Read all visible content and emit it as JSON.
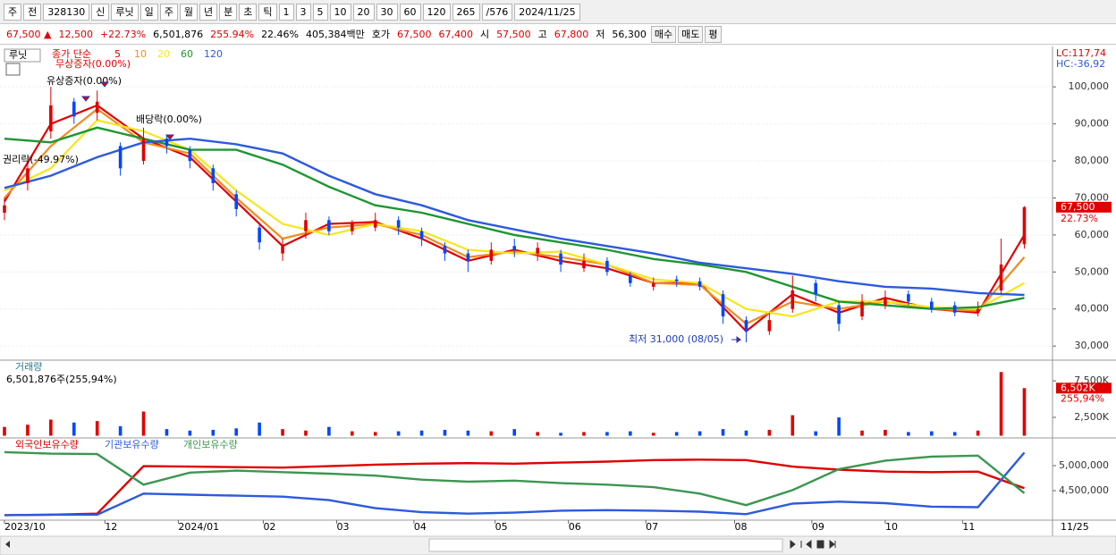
{
  "toolbar": [
    "주",
    "전",
    "328130",
    "신",
    "루닛",
    "일",
    "주",
    "월",
    "년",
    "분",
    "초",
    "틱",
    "1",
    "3",
    "5",
    "10",
    "20",
    "30",
    "60",
    "120",
    "265",
    "/576",
    "2024/11/25"
  ],
  "info_bar": [
    "67,500 ▲",
    "12,500",
    "+22.73%",
    "6,501,876",
    "255.94%",
    "22.46%",
    "405,384백만",
    "호가",
    "67,500",
    "67,400",
    "시",
    "57,500",
    "고",
    "67,800",
    "저",
    "56,300",
    "매수",
    "매도",
    "평"
  ],
  "chart_data": [
    {
      "type": "candlestick",
      "title": "루닛",
      "subtitle": "종가 단순",
      "lc_label": "LC:117,74",
      "hc_label": "HC:-36,92",
      "annotations": [
        "무상증자(0.00%)",
        "유상증자(0.00%)",
        "배당락(0.00%)",
        "권리락(-49.97%)",
        "최저 31,000 (08/05)"
      ],
      "x": [
        0,
        6,
        12,
        18,
        24,
        30,
        36,
        42,
        48,
        54,
        60,
        66,
        72,
        78,
        84,
        90,
        96,
        102,
        108,
        114,
        120,
        126,
        132,
        138,
        144,
        150,
        156,
        162,
        168,
        174,
        180,
        186,
        192,
        198,
        204,
        210,
        216,
        222,
        228,
        234,
        240,
        246,
        252,
        258,
        264
      ],
      "open": [
        66000,
        74000,
        88000,
        96000,
        93000,
        84000,
        80000,
        86000,
        83000,
        78000,
        71000,
        62000,
        55000,
        61000,
        64000,
        61000,
        62000,
        64000,
        61000,
        57000,
        55000,
        53000,
        57000,
        55000,
        55000,
        51000,
        53000,
        49000,
        46000,
        48000,
        47500,
        44000,
        37000,
        34000,
        40000,
        47000,
        41000,
        38000,
        41000,
        44000,
        42000,
        41000,
        39000,
        45000,
        57500
      ],
      "high": [
        70000,
        80000,
        100000,
        97000,
        99000,
        85000,
        89000,
        87000,
        84000,
        79000,
        72000,
        63000,
        59000,
        66000,
        65000,
        64000,
        66000,
        65000,
        62000,
        58000,
        56000,
        58000,
        59000,
        58000,
        56000,
        55000,
        54000,
        50000,
        48500,
        49000,
        48500,
        45000,
        38000,
        39000,
        49000,
        48000,
        42000,
        44000,
        45000,
        45000,
        43000,
        42000,
        42000,
        59000,
        67800
      ],
      "low": [
        64000,
        72000,
        86000,
        90000,
        91000,
        76000,
        79000,
        82000,
        78000,
        72000,
        65000,
        56000,
        53000,
        59000,
        60000,
        60000,
        61000,
        60000,
        57000,
        53000,
        50000,
        52000,
        54000,
        53000,
        50000,
        50000,
        49000,
        46000,
        45000,
        46000,
        45000,
        36000,
        31000,
        33000,
        39000,
        42000,
        34000,
        37000,
        40000,
        41000,
        39000,
        38000,
        38000,
        44000,
        56300
      ],
      "close": [
        68000,
        78000,
        95000,
        92000,
        96000,
        78000,
        86000,
        84000,
        80000,
        74000,
        67000,
        58000,
        57000,
        64000,
        61000,
        63000,
        64000,
        62000,
        59000,
        55000,
        53000,
        56000,
        56000,
        56500,
        52000,
        53000,
        50000,
        47000,
        47000,
        47500,
        46000,
        38000,
        34000,
        37000,
        45000,
        44000,
        36000,
        42000,
        43000,
        42000,
        40000,
        39000,
        40000,
        52000,
        67500
      ],
      "up_color": "#e00000",
      "down_color": "#0046ff",
      "series": [
        {
          "name": "5",
          "color": "#e00000",
          "x": [
            0,
            12,
            24,
            36,
            48,
            60,
            72,
            84,
            96,
            108,
            120,
            132,
            144,
            156,
            168,
            180,
            192,
            204,
            216,
            228,
            240,
            252,
            264
          ],
          "values": [
            69000,
            90000,
            95000,
            86000,
            81000,
            69000,
            57000,
            63000,
            63500,
            59000,
            53000,
            56000,
            53000,
            51000,
            47000,
            47000,
            34000,
            44000,
            39000,
            43000,
            40000,
            39000,
            60000
          ]
        },
        {
          "name": "10",
          "color": "#f08c1e",
          "x": [
            0,
            12,
            24,
            36,
            48,
            60,
            72,
            84,
            96,
            108,
            120,
            132,
            144,
            156,
            168,
            180,
            192,
            204,
            216,
            228,
            240,
            252,
            264
          ],
          "values": [
            70000,
            84000,
            94000,
            85000,
            82000,
            70000,
            59000,
            62000,
            63000,
            60000,
            54000,
            55500,
            54000,
            52000,
            47000,
            46500,
            36000,
            42000,
            40000,
            42000,
            40000,
            39500,
            54000
          ]
        },
        {
          "name": "20",
          "color": "#f5e61e",
          "x": [
            0,
            12,
            24,
            36,
            48,
            60,
            72,
            84,
            96,
            108,
            120,
            132,
            144,
            156,
            168,
            180,
            192,
            204,
            216,
            228,
            240,
            252,
            264
          ],
          "values": [
            72000,
            78000,
            91000,
            88000,
            83000,
            72000,
            63000,
            60000,
            63000,
            61000,
            56000,
            55000,
            55500,
            52000,
            48000,
            47000,
            40000,
            38000,
            42000,
            42000,
            40500,
            40000,
            47000
          ]
        },
        {
          "name": "60",
          "color": "#1e9632",
          "x": [
            0,
            12,
            24,
            36,
            48,
            60,
            72,
            84,
            96,
            108,
            120,
            132,
            144,
            156,
            168,
            180,
            192,
            204,
            216,
            228,
            240,
            252,
            264
          ],
          "values": [
            86000,
            85000,
            89000,
            86000,
            83000,
            83000,
            79000,
            73000,
            68000,
            66000,
            63000,
            60000,
            58000,
            56000,
            53500,
            52000,
            50000,
            46000,
            42000,
            41000,
            40000,
            40500,
            43000
          ]
        },
        {
          "name": "120",
          "color": "#2d5adc",
          "x": [
            0,
            12,
            24,
            36,
            48,
            60,
            72,
            84,
            96,
            108,
            120,
            132,
            144,
            156,
            168,
            180,
            192,
            204,
            216,
            228,
            240,
            252,
            264
          ],
          "values": [
            72700,
            76000,
            81000,
            85000,
            86000,
            84500,
            82000,
            76000,
            71000,
            68000,
            64000,
            61500,
            59000,
            57000,
            55000,
            52500,
            51000,
            49500,
            47500,
            46000,
            45500,
            44300,
            43800
          ]
        }
      ],
      "current_price": {
        "value": 67500,
        "label": "67,500"
      },
      "change_label": "22.73%",
      "xlim": [
        0,
        265
      ],
      "ylim": [
        26900,
        109700
      ],
      "yticks": [
        {
          "value": 30000,
          "label": "30,000"
        },
        {
          "value": 40000,
          "label": "40,000"
        },
        {
          "value": 50000,
          "label": "50,000"
        },
        {
          "value": 60000,
          "label": "60,000"
        },
        {
          "value": 70000,
          "label": "70,000"
        },
        {
          "value": 80000,
          "label": "80,000"
        },
        {
          "value": 90000,
          "label": "90,000"
        },
        {
          "value": 100000,
          "label": "100,000"
        }
      ],
      "grid": true
    },
    {
      "type": "bar",
      "title": "거래량",
      "subtitle": "6,501,876주(255,94%)",
      "x": [
        0,
        6,
        12,
        18,
        24,
        30,
        36,
        42,
        48,
        54,
        60,
        66,
        72,
        78,
        84,
        90,
        96,
        102,
        108,
        114,
        120,
        126,
        132,
        138,
        144,
        150,
        156,
        162,
        168,
        174,
        180,
        186,
        192,
        198,
        204,
        210,
        216,
        222,
        228,
        234,
        240,
        246,
        252,
        258,
        264
      ],
      "values": [
        1200,
        1500,
        2200,
        1800,
        2000,
        1300,
        3300,
        900,
        700,
        800,
        1000,
        1800,
        900,
        700,
        1200,
        600,
        500,
        600,
        700,
        800,
        700,
        600,
        900,
        500,
        400,
        500,
        500,
        600,
        400,
        500,
        600,
        900,
        700,
        800,
        2800,
        600,
        2500,
        700,
        800,
        500,
        600,
        500,
        700,
        8700,
        6502
      ],
      "last_volume": {
        "value": 6502,
        "label": "6,502K"
      },
      "last_pct_label": "255,94%",
      "xlim": [
        0,
        265
      ],
      "ylim": [
        0,
        10200
      ],
      "yticks": [
        {
          "value": 2500,
          "label": "2,500K"
        },
        {
          "value": 7500,
          "label": "7,500K"
        }
      ]
    },
    {
      "type": "line",
      "series": [
        {
          "name": "외국인보유수량",
          "color": "#e00000",
          "x": [
            0,
            12,
            24,
            36,
            48,
            60,
            72,
            84,
            96,
            108,
            120,
            132,
            144,
            156,
            168,
            180,
            192,
            204,
            216,
            228,
            240,
            252,
            264
          ],
          "values": [
            4010000,
            4020000,
            4040000,
            4990000,
            4980000,
            4970000,
            4960000,
            4990000,
            5020000,
            5040000,
            5050000,
            5040000,
            5060000,
            5080000,
            5110000,
            5120000,
            5110000,
            4980000,
            4920000,
            4880000,
            4870000,
            4880000,
            4550000
          ]
        },
        {
          "name": "기관보유수량",
          "color": "#2d5adc",
          "x": [
            0,
            12,
            24,
            36,
            48,
            60,
            72,
            84,
            96,
            108,
            120,
            132,
            144,
            156,
            168,
            180,
            192,
            204,
            216,
            228,
            240,
            252,
            264
          ],
          "values": [
            4010000,
            4020000,
            4020000,
            4440000,
            4420000,
            4400000,
            4380000,
            4310000,
            4150000,
            4070000,
            4040000,
            4060000,
            4100000,
            4110000,
            4100000,
            4080000,
            4030000,
            4240000,
            4280000,
            4250000,
            4180000,
            4170000,
            5260000
          ]
        },
        {
          "name": "개인보유수량",
          "color": "#3c9650",
          "x": [
            0,
            12,
            24,
            36,
            48,
            60,
            72,
            84,
            96,
            108,
            120,
            132,
            144,
            156,
            168,
            180,
            192,
            204,
            216,
            228,
            240,
            252,
            264
          ],
          "values": [
            5270000,
            5240000,
            5230000,
            4620000,
            4860000,
            4900000,
            4870000,
            4840000,
            4800000,
            4720000,
            4680000,
            4700000,
            4650000,
            4620000,
            4570000,
            4440000,
            4210000,
            4510000,
            4930000,
            5100000,
            5180000,
            5200000,
            4450000
          ]
        }
      ],
      "xlim": [
        0,
        265
      ],
      "ylim": [
        3946000,
        5518000
      ],
      "yticks": [
        {
          "value": 4500000,
          "label": "4,500,000"
        },
        {
          "value": 5000000,
          "label": "5,000,000"
        }
      ],
      "xticks": [
        {
          "value": 0,
          "label": "2023/10"
        },
        {
          "value": 26,
          "label": "12"
        },
        {
          "value": 45,
          "label": "2024/01"
        },
        {
          "value": 67,
          "label": "02"
        },
        {
          "value": 86,
          "label": "03"
        },
        {
          "value": 106,
          "label": "04"
        },
        {
          "value": 127,
          "label": "05"
        },
        {
          "value": 146,
          "label": "06"
        },
        {
          "value": 166,
          "label": "07"
        },
        {
          "value": 189,
          "label": "08"
        },
        {
          "value": 209,
          "label": "09"
        },
        {
          "value": 228,
          "label": "10"
        },
        {
          "value": 248,
          "label": "11"
        }
      ],
      "last_date_label": "11/25"
    }
  ]
}
